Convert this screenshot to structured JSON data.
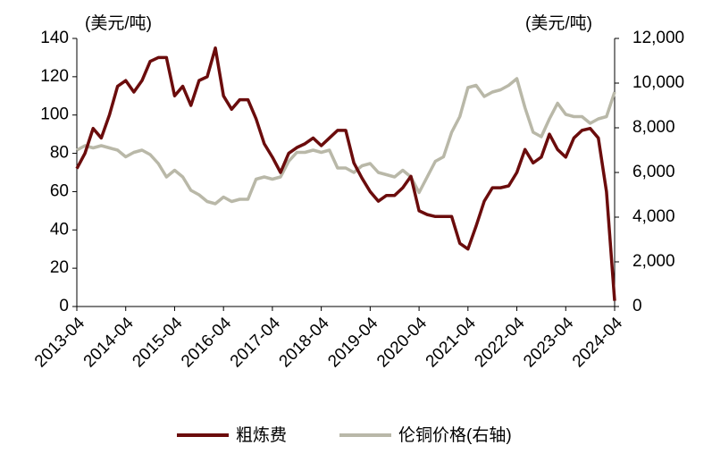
{
  "chart_data": {
    "type": "line",
    "y_label": "(美元/吨)",
    "y2_label": "(美元/吨)",
    "x": [
      "2013-04",
      "2013-06",
      "2013-08",
      "2013-10",
      "2013-12",
      "2014-02",
      "2014-04",
      "2014-06",
      "2014-08",
      "2014-10",
      "2014-12",
      "2015-02",
      "2015-04",
      "2015-06",
      "2015-08",
      "2015-10",
      "2015-12",
      "2016-02",
      "2016-04",
      "2016-06",
      "2016-08",
      "2016-10",
      "2016-12",
      "2017-02",
      "2017-04",
      "2017-06",
      "2017-08",
      "2017-10",
      "2017-12",
      "2018-02",
      "2018-04",
      "2018-06",
      "2018-08",
      "2018-10",
      "2018-12",
      "2019-02",
      "2019-04",
      "2019-06",
      "2019-08",
      "2019-10",
      "2019-12",
      "2020-02",
      "2020-04",
      "2020-06",
      "2020-08",
      "2020-10",
      "2020-12",
      "2021-02",
      "2021-04",
      "2021-06",
      "2021-08",
      "2021-10",
      "2021-12",
      "2022-02",
      "2022-04",
      "2022-06",
      "2022-08",
      "2022-10",
      "2022-12",
      "2023-02",
      "2023-04",
      "2023-06",
      "2023-08",
      "2023-10",
      "2023-12",
      "2024-02",
      "2024-04"
    ],
    "series": [
      {
        "name": "粗炼费",
        "color": "#6b0c0c",
        "values": [
          72,
          80,
          93,
          88,
          100,
          115,
          118,
          112,
          118,
          128,
          130,
          130,
          110,
          115,
          105,
          118,
          120,
          135,
          110,
          103,
          108,
          108,
          98,
          85,
          78,
          70,
          80,
          83,
          85,
          88,
          84,
          88,
          92,
          92,
          75,
          67,
          60,
          55,
          58,
          58,
          62,
          68,
          50,
          48,
          47,
          47,
          47,
          33,
          30,
          42,
          55,
          62,
          62,
          63,
          70,
          82,
          75,
          78,
          90,
          82,
          78,
          88,
          92,
          93,
          88,
          60,
          3
        ]
      },
      {
        "name": "伦铜价格(右轴)",
        "color": "#b9b8a8",
        "axis": "y2",
        "values": [
          7000,
          7200,
          7100,
          7200,
          7100,
          7000,
          6700,
          6900,
          7000,
          6800,
          6400,
          5800,
          6100,
          5800,
          5200,
          5000,
          4700,
          4600,
          4900,
          4700,
          4800,
          4800,
          5700,
          5800,
          5700,
          5800,
          6500,
          6900,
          6900,
          7000,
          6900,
          7000,
          6200,
          6200,
          6000,
          6300,
          6400,
          6000,
          5900,
          5800,
          6100,
          5800,
          5100,
          5800,
          6500,
          6700,
          7800,
          8500,
          9800,
          9900,
          9400,
          9600,
          9700,
          9900,
          10200,
          8900,
          7800,
          7600,
          8400,
          9100,
          8600,
          8500,
          8500,
          8200,
          8400,
          8500,
          9600
        ]
      }
    ],
    "xlim": [
      "2013-04",
      "2024-04"
    ],
    "xticks": [
      "2013-04",
      "2014-04",
      "2015-04",
      "2016-04",
      "2017-04",
      "2018-04",
      "2019-04",
      "2020-04",
      "2021-04",
      "2022-04",
      "2023-04",
      "2024-04"
    ],
    "ylim": [
      0,
      140
    ],
    "yticks": [
      0,
      20,
      40,
      60,
      80,
      100,
      120,
      140
    ],
    "y2lim": [
      0,
      12000
    ],
    "y2ticks": [
      0,
      {
        "value": 2000,
        "label": "2,000"
      },
      {
        "value": 4000,
        "label": "4,000"
      },
      {
        "value": 6000,
        "label": "6,000"
      },
      {
        "value": 8000,
        "label": "8,000"
      },
      {
        "value": 10000,
        "label": "10,000"
      },
      {
        "value": 12000,
        "label": "12,000"
      }
    ],
    "grid": false
  }
}
